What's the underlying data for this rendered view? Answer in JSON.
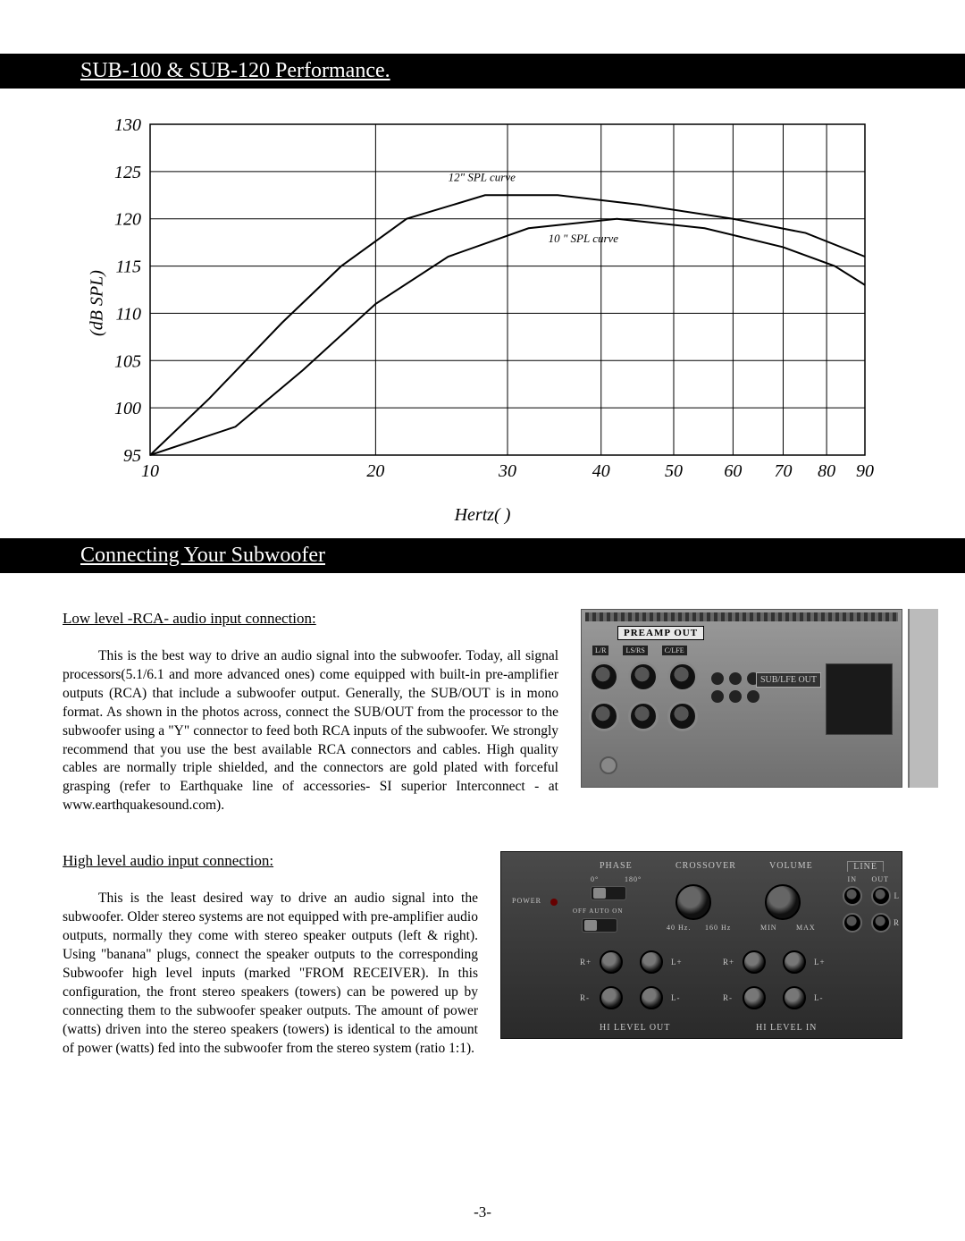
{
  "banner1": "SUB-100 & SUB-120 Performance.",
  "banner2": "Connecting Your Subwoofer",
  "chart": {
    "type": "line",
    "y_label": "(dB SPL)",
    "x_label": "Hertz(     )",
    "y_ticks": [
      95,
      100,
      105,
      110,
      115,
      120,
      125,
      130
    ],
    "x_ticks": [
      10,
      20,
      30,
      40,
      50,
      60,
      70,
      80,
      90
    ],
    "x_scale": "log",
    "xlim": [
      10,
      90
    ],
    "ylim": [
      95,
      130
    ],
    "grid_color": "#000000",
    "background_color": "#ffffff",
    "line_color": "#000000",
    "line_width": 2,
    "curve12_label": "12\" SPL curve",
    "curve10_label": "10 \" SPL curve",
    "label_fontsize": 13,
    "axis_fontsize": 20,
    "tick_fontsize": 20,
    "series": {
      "12in": [
        {
          "hz": 10,
          "db": 95
        },
        {
          "hz": 12,
          "db": 101
        },
        {
          "hz": 15,
          "db": 109
        },
        {
          "hz": 18,
          "db": 115
        },
        {
          "hz": 22,
          "db": 120
        },
        {
          "hz": 28,
          "db": 122.5
        },
        {
          "hz": 35,
          "db": 122.5
        },
        {
          "hz": 45,
          "db": 121.5
        },
        {
          "hz": 60,
          "db": 120
        },
        {
          "hz": 75,
          "db": 118.5
        },
        {
          "hz": 90,
          "db": 116
        }
      ],
      "10in": [
        {
          "hz": 10,
          "db": 95
        },
        {
          "hz": 13,
          "db": 98
        },
        {
          "hz": 16,
          "db": 104
        },
        {
          "hz": 20,
          "db": 111
        },
        {
          "hz": 25,
          "db": 116
        },
        {
          "hz": 32,
          "db": 119
        },
        {
          "hz": 42,
          "db": 120
        },
        {
          "hz": 55,
          "db": 119
        },
        {
          "hz": 70,
          "db": 117
        },
        {
          "hz": 82,
          "db": 115
        },
        {
          "hz": 90,
          "db": 113
        }
      ]
    }
  },
  "sec1": {
    "heading": "Low level -RCA- audio input connection:",
    "para": "This is the best way to drive an audio signal into the subwoofer. Today, all signal processors(5.1/6.1 and more advanced ones) come equipped with built-in pre-amplifier outputs (RCA) that include a subwoofer output. Generally, the SUB/OUT is in mono format. As shown in the photos across, connect the SUB/OUT from the processor to the subwoofer using a \"Y\" connector to feed both RCA inputs of the subwoofer. We strongly recommend that you use the best available RCA connectors and cables. High quality cables are normally triple shielded, and the connectors are gold plated with forceful grasping (refer to Earthquake line of accessories- SI superior Interconnect - at www.earthquakesound.com)."
  },
  "sec2": {
    "heading": "High level audio input connection:",
    "para": "This is the least desired way to drive an audio signal into the subwoofer. Older stereo systems are not equipped with pre-amplifier audio outputs, normally they come with stereo speaker outputs (left & right). Using \"banana\" plugs, connect the speaker outputs to the corresponding Subwoofer high level inputs (marked \"FROM RECEIVER). In this configuration, the front stereo speakers (towers) can be powered up by connecting them to the subwoofer speaker outputs. The amount of power (watts) driven into the stereo speakers (towers) is identical to the amount of power (watts) fed into the subwoofer from the stereo system (ratio 1:1)."
  },
  "preamp": {
    "label": "PREAMP OUT",
    "sublfe": "SUB/LFE OUT",
    "ch1": "L/R",
    "ch2": "LS/RS",
    "ch3": "C/LFE"
  },
  "panel": {
    "phase": "PHASE",
    "phase0": "0°",
    "phase180": "180°",
    "crossover": "CROSSOVER",
    "xo_lo": "40 Hz.",
    "xo_hi": "160 Hz",
    "volume": "VOLUME",
    "vol_lo": "MIN",
    "vol_hi": "MAX",
    "line": "LINE",
    "line_in": "IN",
    "line_out": "OUT",
    "power": "POWER",
    "power_modes": "OFF  AUTO  ON",
    "hi_out": "HI LEVEL OUT",
    "hi_in": "HI LEVEL IN",
    "Lmark": "L",
    "Rmark": "R",
    "Rp": "R+",
    "Rm": "R-",
    "Lp": "L+",
    "Lm": "L-"
  },
  "page_number": "-3-"
}
